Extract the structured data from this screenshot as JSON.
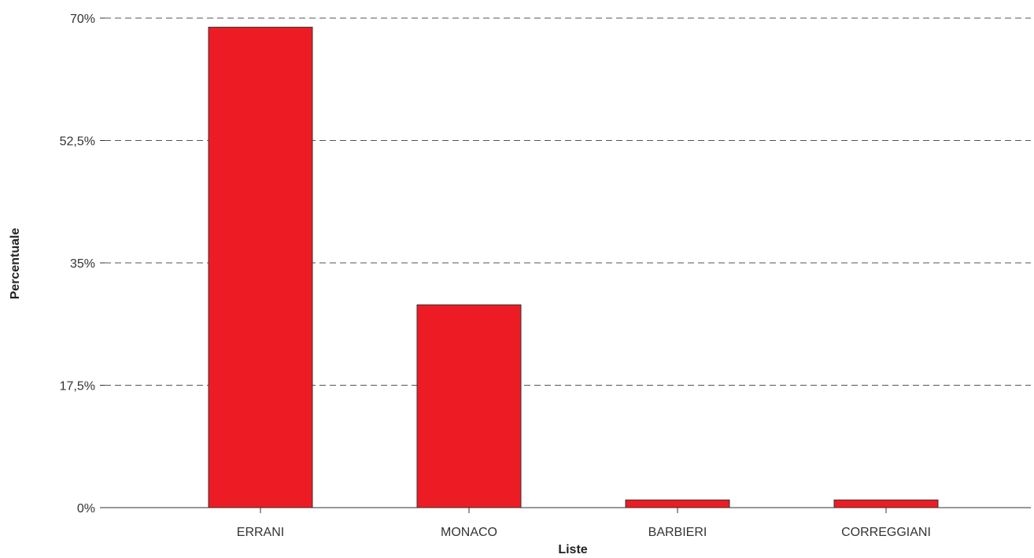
{
  "chart_data": {
    "type": "bar",
    "categories": [
      "ERRANI",
      "MONACO",
      "BARBIERI",
      "CORREGGIANI"
    ],
    "values": [
      68.7,
      29.0,
      1.1,
      1.1
    ],
    "xlabel": "Liste",
    "ylabel": "Percentuale",
    "ylim": [
      0,
      70
    ],
    "yticks": [
      0,
      17.5,
      35,
      52.5,
      70
    ],
    "ytick_labels": [
      "0%",
      "17,5%",
      "35%",
      "52,5%",
      "70%"
    ],
    "bar_color": "#ed1c24",
    "grid": true,
    "grid_style": "dashed"
  }
}
